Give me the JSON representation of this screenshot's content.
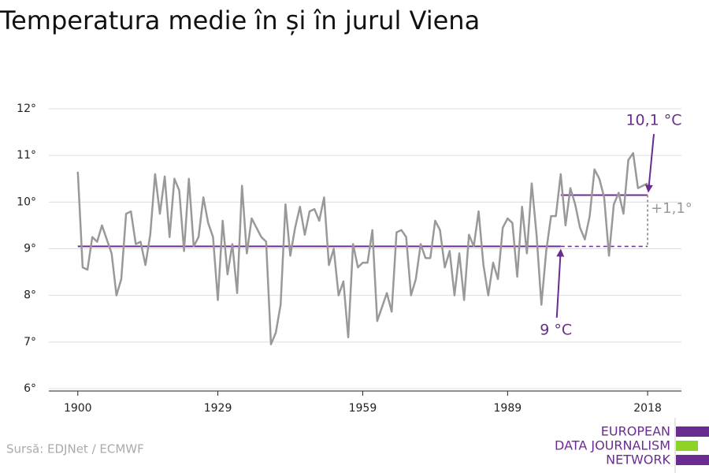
{
  "chart_data": {
    "type": "line",
    "title": "Temperatura medie în și în jurul Viena",
    "source": "Sursă: EDJNet / ECMWF",
    "logo": [
      "EUROPEAN",
      "DATA JOURNALISM",
      "NETWORK"
    ],
    "x": [
      1900,
      1901,
      1902,
      1903,
      1904,
      1905,
      1906,
      1907,
      1908,
      1909,
      1910,
      1911,
      1912,
      1913,
      1914,
      1915,
      1916,
      1917,
      1918,
      1919,
      1920,
      1921,
      1922,
      1923,
      1924,
      1925,
      1926,
      1927,
      1928,
      1929,
      1930,
      1931,
      1932,
      1933,
      1934,
      1935,
      1936,
      1937,
      1938,
      1939,
      1940,
      1941,
      1942,
      1943,
      1944,
      1945,
      1946,
      1947,
      1948,
      1949,
      1950,
      1951,
      1952,
      1953,
      1954,
      1955,
      1956,
      1957,
      1958,
      1959,
      1960,
      1961,
      1962,
      1963,
      1964,
      1965,
      1966,
      1967,
      1968,
      1969,
      1970,
      1971,
      1972,
      1973,
      1974,
      1975,
      1976,
      1977,
      1978,
      1979,
      1980,
      1981,
      1982,
      1983,
      1984,
      1985,
      1986,
      1987,
      1988,
      1989,
      1990,
      1991,
      1992,
      1993,
      1994,
      1995,
      1996,
      1997,
      1998,
      1999,
      2000,
      2001,
      2002,
      2003,
      2004,
      2005,
      2006,
      2007,
      2008,
      2009,
      2010,
      2011,
      2012,
      2013,
      2014,
      2015,
      2016,
      2017,
      2018
    ],
    "values": [
      10.65,
      8.6,
      8.55,
      9.25,
      9.15,
      9.5,
      9.2,
      8.9,
      8.0,
      8.35,
      9.75,
      9.8,
      9.1,
      9.15,
      8.65,
      9.3,
      10.6,
      9.75,
      10.55,
      9.25,
      10.5,
      10.25,
      8.95,
      10.5,
      9.05,
      9.25,
      10.1,
      9.55,
      9.25,
      7.9,
      9.6,
      8.45,
      9.1,
      8.05,
      10.35,
      8.9,
      9.65,
      9.45,
      9.25,
      9.15,
      6.95,
      7.2,
      7.8,
      9.95,
      8.85,
      9.45,
      9.9,
      9.3,
      9.8,
      9.85,
      9.6,
      10.1,
      8.65,
      9.0,
      8.0,
      8.3,
      7.1,
      9.1,
      8.6,
      8.7,
      8.7,
      9.4,
      7.45,
      7.75,
      8.05,
      7.65,
      9.35,
      9.4,
      9.25,
      8.0,
      8.35,
      9.1,
      8.8,
      8.8,
      9.6,
      9.4,
      8.6,
      8.95,
      8.0,
      8.9,
      7.9,
      9.3,
      9.05,
      9.8,
      8.65,
      8.0,
      8.7,
      8.35,
      9.45,
      9.65,
      9.55,
      8.4,
      9.9,
      8.9,
      10.4,
      9.3,
      7.8,
      8.95,
      9.7,
      9.7,
      10.6,
      9.5,
      10.3,
      9.95,
      9.45,
      9.2,
      9.7,
      10.7,
      10.5,
      10.1,
      8.85,
      9.95,
      10.2,
      9.75,
      10.9,
      11.05,
      10.3,
      10.35,
      10.4
    ],
    "color": "#999999",
    "xlim": [
      1894,
      2025
    ],
    "xticks": [
      1900,
      1929,
      1959,
      1989,
      2018
    ],
    "ylim": [
      6,
      12
    ],
    "yticks": [
      {
        "value": 6,
        "label": "6°"
      },
      {
        "value": 7,
        "label": "7°"
      },
      {
        "value": 8,
        "label": "8°"
      },
      {
        "value": 9,
        "label": "9°"
      },
      {
        "value": 10,
        "label": "10°"
      },
      {
        "value": 11,
        "label": "11°"
      },
      {
        "value": 12,
        "label": "12°"
      }
    ],
    "grid": true,
    "reference_lines": [
      {
        "value": 9.05,
        "x_start": 1900,
        "x_end": 2000,
        "label": "9 °C",
        "color": "#6a2c91"
      },
      {
        "value": 10.15,
        "x_start": 2000,
        "x_end": 2018,
        "label": "10,1 °C",
        "color": "#6a2c91"
      }
    ],
    "difference_label": "+1,1°"
  }
}
